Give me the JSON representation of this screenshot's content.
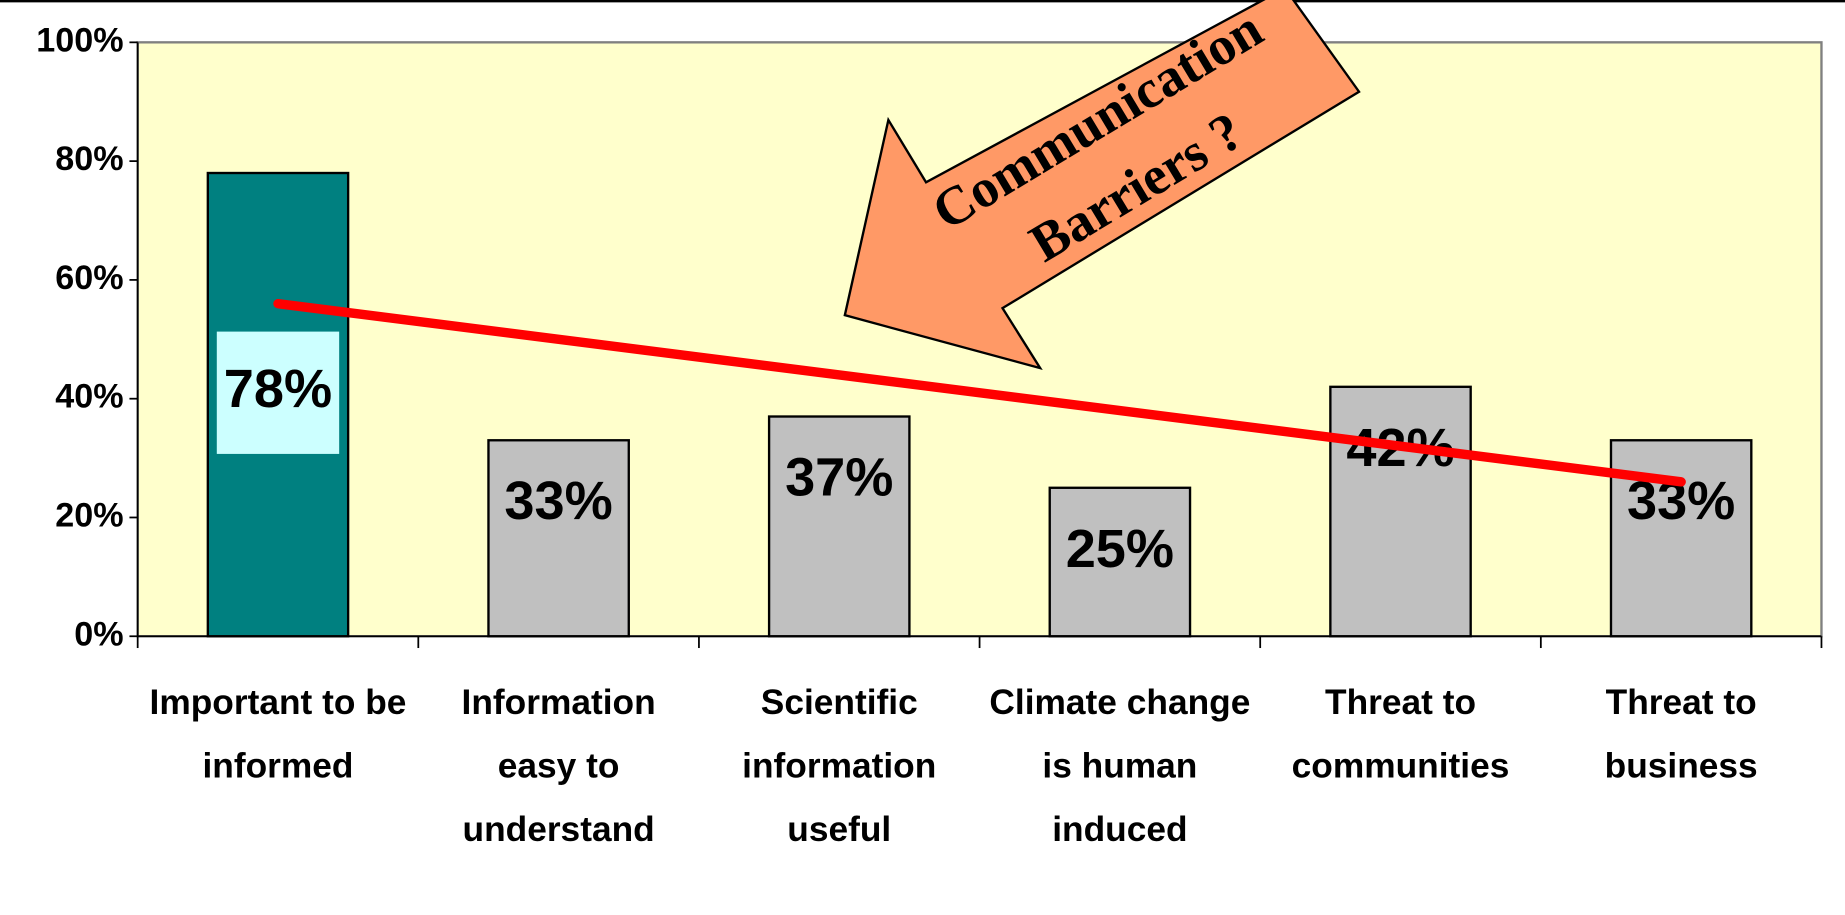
{
  "chart_data": {
    "type": "bar",
    "categories": [
      "Important to be informed",
      "Information easy to understand",
      "Scientific information useful",
      "Climate change is human induced",
      "Threat to communities",
      "Threat to business"
    ],
    "values": [
      78,
      33,
      37,
      25,
      42,
      33
    ],
    "value_labels": [
      "78%",
      "33%",
      "37%",
      "25%",
      "42%",
      "33%"
    ],
    "colors": [
      "#008080",
      "#c0c0c0",
      "#c0c0c0",
      "#c0c0c0",
      "#c0c0c0",
      "#c0c0c0"
    ],
    "ylim": [
      0,
      100
    ],
    "yticks": [
      {
        "value": 0,
        "label": "0%"
      },
      {
        "value": 20,
        "label": "20%"
      },
      {
        "value": 40,
        "label": "40%"
      },
      {
        "value": 60,
        "label": "60%"
      },
      {
        "value": 80,
        "label": "80%"
      },
      {
        "value": 100,
        "label": "100%"
      }
    ],
    "grid": false,
    "plot_background": "#ffffcc",
    "trendline": {
      "start": 56,
      "end": 26,
      "color": "#ff0000"
    },
    "annotation": [
      "Communication",
      "Barriers ?"
    ]
  }
}
